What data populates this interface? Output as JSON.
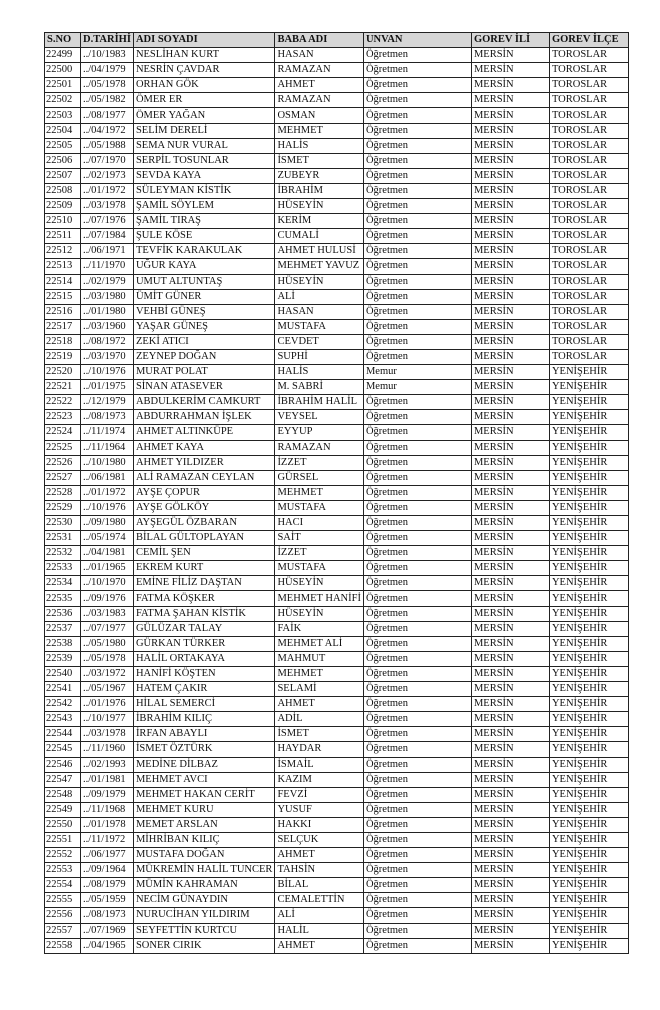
{
  "headers": [
    "S.NO",
    "D.TARİHİ",
    "ADI SOYADI",
    "BABA ADI",
    "UNVAN",
    "GOREV İLİ",
    "GOREV İLÇE"
  ],
  "rows": [
    [
      "22499",
      "../10/1983",
      "NESLİHAN KURT",
      "HASAN",
      "Öğretmen",
      "MERSİN",
      "TOROSLAR"
    ],
    [
      "22500",
      "../04/1979",
      "NESRİN ÇAVDAR",
      "RAMAZAN",
      "Öğretmen",
      "MERSİN",
      "TOROSLAR"
    ],
    [
      "22501",
      "../05/1978",
      "ORHAN GÖK",
      "AHMET",
      "Öğretmen",
      "MERSİN",
      "TOROSLAR"
    ],
    [
      "22502",
      "../05/1982",
      "ÖMER ER",
      "RAMAZAN",
      "Öğretmen",
      "MERSİN",
      "TOROSLAR"
    ],
    [
      "22503",
      "../08/1977",
      "ÖMER YAĞAN",
      "OSMAN",
      "Öğretmen",
      "MERSİN",
      "TOROSLAR"
    ],
    [
      "22504",
      "../04/1972",
      "SELİM DERELİ",
      "MEHMET",
      "Öğretmen",
      "MERSİN",
      "TOROSLAR"
    ],
    [
      "22505",
      "../05/1988",
      "SEMA NUR VURAL",
      "HALİS",
      "Öğretmen",
      "MERSİN",
      "TOROSLAR"
    ],
    [
      "22506",
      "../07/1970",
      "SERPİL TOSUNLAR",
      "İSMET",
      "Öğretmen",
      "MERSİN",
      "TOROSLAR"
    ],
    [
      "22507",
      "../02/1973",
      "SEVDA KAYA",
      "ZUBEYR",
      "Öğretmen",
      "MERSİN",
      "TOROSLAR"
    ],
    [
      "22508",
      "../01/1972",
      "SÜLEYMAN KİSTİK",
      "İBRAHİM",
      "Öğretmen",
      "MERSİN",
      "TOROSLAR"
    ],
    [
      "22509",
      "../03/1978",
      "ŞAMİL SÖYLEM",
      "HÜSEYİN",
      "Öğretmen",
      "MERSİN",
      "TOROSLAR"
    ],
    [
      "22510",
      "../07/1976",
      "ŞAMİL TIRAŞ",
      "KERİM",
      "Öğretmen",
      "MERSİN",
      "TOROSLAR"
    ],
    [
      "22511",
      "../07/1984",
      "ŞULE KÖSE",
      "CUMALİ",
      "Öğretmen",
      "MERSİN",
      "TOROSLAR"
    ],
    [
      "22512",
      "../06/1971",
      "TEVFİK KARAKULAK",
      "AHMET HULUSİ",
      "Öğretmen",
      "MERSİN",
      "TOROSLAR"
    ],
    [
      "22513",
      "../11/1970",
      "UĞUR KAYA",
      "MEHMET YAVUZ",
      "Öğretmen",
      "MERSİN",
      "TOROSLAR"
    ],
    [
      "22514",
      "../02/1979",
      "UMUT ALTUNTAŞ",
      "HÜSEYİN",
      "Öğretmen",
      "MERSİN",
      "TOROSLAR"
    ],
    [
      "22515",
      "../03/1980",
      "ÜMİT GÜNER",
      "ALİ",
      "Öğretmen",
      "MERSİN",
      "TOROSLAR"
    ],
    [
      "22516",
      "../01/1980",
      "VEHBİ GÜNEŞ",
      "HASAN",
      "Öğretmen",
      "MERSİN",
      "TOROSLAR"
    ],
    [
      "22517",
      "../03/1960",
      "YAŞAR GÜNEŞ",
      "MUSTAFA",
      "Öğretmen",
      "MERSİN",
      "TOROSLAR"
    ],
    [
      "22518",
      "../08/1972",
      "ZEKİ ATICI",
      "CEVDET",
      "Öğretmen",
      "MERSİN",
      "TOROSLAR"
    ],
    [
      "22519",
      "../03/1970",
      "ZEYNEP DOĞAN",
      "SUPHİ",
      "Öğretmen",
      "MERSİN",
      "TOROSLAR"
    ],
    [
      "22520",
      "../10/1976",
      "MURAT POLAT",
      "HALİS",
      "Memur",
      "MERSİN",
      "YENİŞEHİR"
    ],
    [
      "22521",
      "../01/1975",
      "SİNAN ATASEVER",
      "M. SABRİ",
      "Memur",
      "MERSİN",
      "YENİŞEHİR"
    ],
    [
      "22522",
      "../12/1979",
      "ABDULKERİM CAMKURT",
      "İBRAHİM HALİL",
      "Öğretmen",
      "MERSİN",
      "YENİŞEHİR"
    ],
    [
      "22523",
      "../08/1973",
      "ABDURRAHMAN İŞLEK",
      "VEYSEL",
      "Öğretmen",
      "MERSİN",
      "YENİŞEHİR"
    ],
    [
      "22524",
      "../11/1974",
      "AHMET ALTINKÜPE",
      "EYYUP",
      "Öğretmen",
      "MERSİN",
      "YENİŞEHİR"
    ],
    [
      "22525",
      "../11/1964",
      "AHMET KAYA",
      "RAMAZAN",
      "Öğretmen",
      "MERSİN",
      "YENİŞEHİR"
    ],
    [
      "22526",
      "../10/1980",
      "AHMET YILDIZER",
      "İZZET",
      "Öğretmen",
      "MERSİN",
      "YENİŞEHİR"
    ],
    [
      "22527",
      "../06/1981",
      "ALİ RAMAZAN CEYLAN",
      "GÜRSEL",
      "Öğretmen",
      "MERSİN",
      "YENİŞEHİR"
    ],
    [
      "22528",
      "../01/1972",
      "AYŞE ÇOPUR",
      "MEHMET",
      "Öğretmen",
      "MERSİN",
      "YENİŞEHİR"
    ],
    [
      "22529",
      "../10/1976",
      "AYŞE GÖLKÖY",
      "MUSTAFA",
      "Öğretmen",
      "MERSİN",
      "YENİŞEHİR"
    ],
    [
      "22530",
      "../09/1980",
      "AYŞEGÜL ÖZBARAN",
      "HACI",
      "Öğretmen",
      "MERSİN",
      "YENİŞEHİR"
    ],
    [
      "22531",
      "../05/1974",
      "BİLAL GÜLTOPLAYAN",
      "SAİT",
      "Öğretmen",
      "MERSİN",
      "YENİŞEHİR"
    ],
    [
      "22532",
      "../04/1981",
      "CEMİL ŞEN",
      "İZZET",
      "Öğretmen",
      "MERSİN",
      "YENİŞEHİR"
    ],
    [
      "22533",
      "../01/1965",
      "EKREM KURT",
      "MUSTAFA",
      "Öğretmen",
      "MERSİN",
      "YENİŞEHİR"
    ],
    [
      "22534",
      "../10/1970",
      "EMİNE FİLİZ DAŞTAN",
      "HÜSEYİN",
      "Öğretmen",
      "MERSİN",
      "YENİŞEHİR"
    ],
    [
      "22535",
      "../09/1976",
      "FATMA KÖŞKER",
      "MEHMET HANİFİ",
      "Öğretmen",
      "MERSİN",
      "YENİŞEHİR"
    ],
    [
      "22536",
      "../03/1983",
      "FATMA ŞAHAN KİSTİK",
      "HÜSEYİN",
      "Öğretmen",
      "MERSİN",
      "YENİŞEHİR"
    ],
    [
      "22537",
      "../07/1977",
      "GÜLÜZAR TALAY",
      "FAİK",
      "Öğretmen",
      "MERSİN",
      "YENİŞEHİR"
    ],
    [
      "22538",
      "../05/1980",
      "GÜRKAN TÜRKER",
      "MEHMET ALİ",
      "Öğretmen",
      "MERSİN",
      "YENİŞEHİR"
    ],
    [
      "22539",
      "../05/1978",
      "HALİL ORTAKAYA",
      "MAHMUT",
      "Öğretmen",
      "MERSİN",
      "YENİŞEHİR"
    ],
    [
      "22540",
      "../03/1972",
      "HANİFİ KÖŞTEN",
      "MEHMET",
      "Öğretmen",
      "MERSİN",
      "YENİŞEHİR"
    ],
    [
      "22541",
      "../05/1967",
      "HATEM ÇAKIR",
      "SELAMİ",
      "Öğretmen",
      "MERSİN",
      "YENİŞEHİR"
    ],
    [
      "22542",
      "../01/1976",
      "HİLAL SEMERCİ",
      "AHMET",
      "Öğretmen",
      "MERSİN",
      "YENİŞEHİR"
    ],
    [
      "22543",
      "../10/1977",
      "İBRAHİM KILIÇ",
      "ADİL",
      "Öğretmen",
      "MERSİN",
      "YENİŞEHİR"
    ],
    [
      "22544",
      "../03/1978",
      "İRFAN ABAYLI",
      "İSMET",
      "Öğretmen",
      "MERSİN",
      "YENİŞEHİR"
    ],
    [
      "22545",
      "../11/1960",
      "İSMET ÖZTÜRK",
      "HAYDAR",
      "Öğretmen",
      "MERSİN",
      "YENİŞEHİR"
    ],
    [
      "22546",
      "../02/1993",
      "MEDİNE DİLBAZ",
      "İSMAİL",
      "Öğretmen",
      "MERSİN",
      "YENİŞEHİR"
    ],
    [
      "22547",
      "../01/1981",
      "MEHMET AVCI",
      "KAZIM",
      "Öğretmen",
      "MERSİN",
      "YENİŞEHİR"
    ],
    [
      "22548",
      "../09/1979",
      "MEHMET HAKAN CERİT",
      "FEVZİ",
      "Öğretmen",
      "MERSİN",
      "YENİŞEHİR"
    ],
    [
      "22549",
      "../11/1968",
      "MEHMET KURU",
      "YUSUF",
      "Öğretmen",
      "MERSİN",
      "YENİŞEHİR"
    ],
    [
      "22550",
      "../01/1978",
      "MEMET ARSLAN",
      "HAKKI",
      "Öğretmen",
      "MERSİN",
      "YENİŞEHİR"
    ],
    [
      "22551",
      "../11/1972",
      "MİHRİBAN KILIÇ",
      "SELÇUK",
      "Öğretmen",
      "MERSİN",
      "YENİŞEHİR"
    ],
    [
      "22552",
      "../06/1977",
      "MUSTAFA DOĞAN",
      "AHMET",
      "Öğretmen",
      "MERSİN",
      "YENİŞEHİR"
    ],
    [
      "22553",
      "../09/1964",
      "MÜKREMİN HALİL TUNCER",
      "TAHSİN",
      "Öğretmen",
      "MERSİN",
      "YENİŞEHİR"
    ],
    [
      "22554",
      "../08/1979",
      "MÜMİN KAHRAMAN",
      "BİLAL",
      "Öğretmen",
      "MERSİN",
      "YENİŞEHİR"
    ],
    [
      "22555",
      "../05/1959",
      "NECİM GÜNAYDIN",
      "CEMALETTİN",
      "Öğretmen",
      "MERSİN",
      "YENİŞEHİR"
    ],
    [
      "22556",
      "../08/1973",
      "NURUCİHAN YILDIRIM",
      "ALİ",
      "Öğretmen",
      "MERSİN",
      "YENİŞEHİR"
    ],
    [
      "22557",
      "../07/1969",
      "SEYFETTİN KURTCU",
      "HALİL",
      "Öğretmen",
      "MERSİN",
      "YENİŞEHİR"
    ],
    [
      "22558",
      "../04/1965",
      "SONER CIRIK",
      "AHMET",
      "Öğretmen",
      "MERSİN",
      "YENİŞEHİR"
    ]
  ]
}
